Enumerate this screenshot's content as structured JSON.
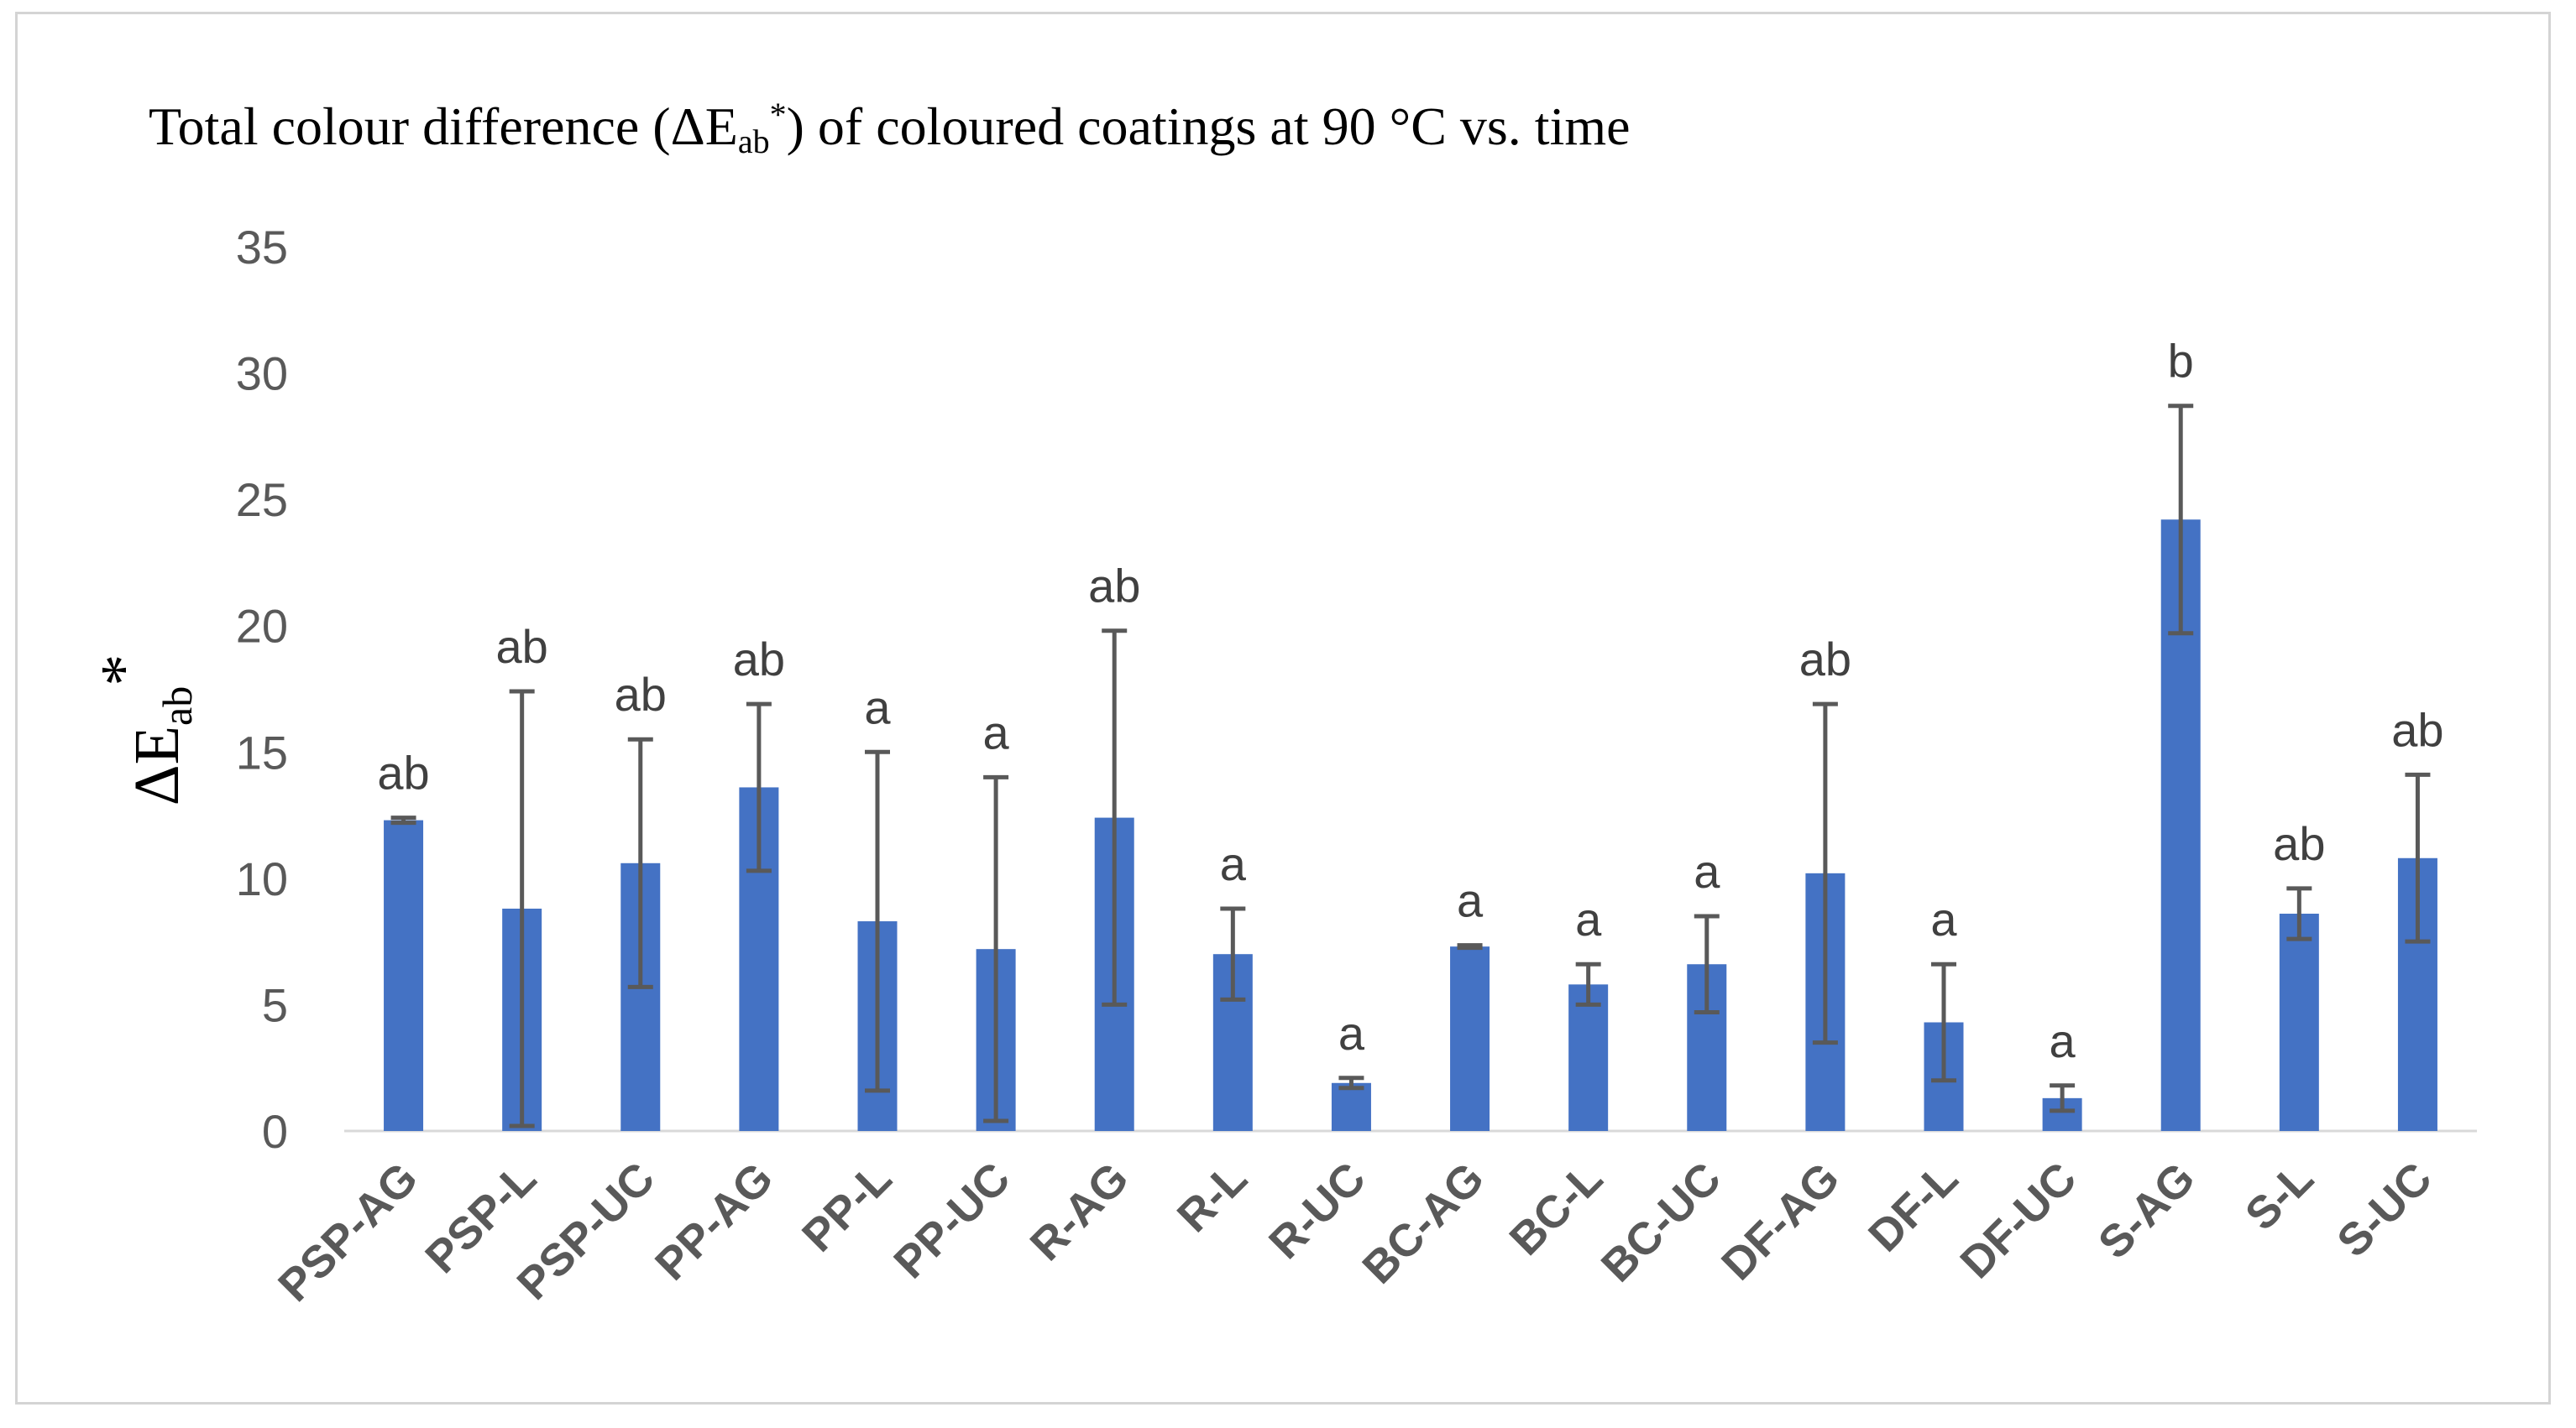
{
  "chart_data": {
    "type": "bar",
    "title_parts": {
      "prefix": "Total colour difference (ΔE",
      "subscript": "ab",
      "superscript": "*",
      "suffix": ") of coloured coatings at 90 °C vs. time"
    },
    "ylabel_parts": {
      "main": "ΔE",
      "subscript": "ab",
      "superscript": "*"
    },
    "xlabel": "",
    "ylim": [
      0,
      35
    ],
    "yticks": [
      0,
      5,
      10,
      15,
      20,
      25,
      30,
      35
    ],
    "grid": false,
    "legend": "none",
    "bar_color": "#4472C4",
    "error_bar_color": "#595959",
    "categories": [
      "PSP-AG",
      "PSP-L",
      "PSP-UC",
      "PP-AG",
      "PP-L",
      "PP-UC",
      "R-AG",
      "R-L",
      "R-UC",
      "BC-AG",
      "BC-L",
      "BC-UC",
      "DF-AG",
      "DF-L",
      "DF-UC",
      "S-AG",
      "S-L",
      "S-UC"
    ],
    "values": [
      12.3,
      8.8,
      10.6,
      13.6,
      8.3,
      7.2,
      12.4,
      7.0,
      1.9,
      7.3,
      5.8,
      6.6,
      10.2,
      4.3,
      1.3,
      24.2,
      8.6,
      10.8
    ],
    "error": [
      0.1,
      8.6,
      4.9,
      3.3,
      6.7,
      6.8,
      7.4,
      1.8,
      0.2,
      0.05,
      0.8,
      1.9,
      6.7,
      2.3,
      0.5,
      4.5,
      1.0,
      3.3
    ],
    "significance_labels": [
      "ab",
      "ab",
      "ab",
      "ab",
      "a",
      "a",
      "ab",
      "a",
      "a",
      "a",
      "a",
      "a",
      "ab",
      "a",
      "a",
      "b",
      "ab",
      "ab"
    ]
  }
}
